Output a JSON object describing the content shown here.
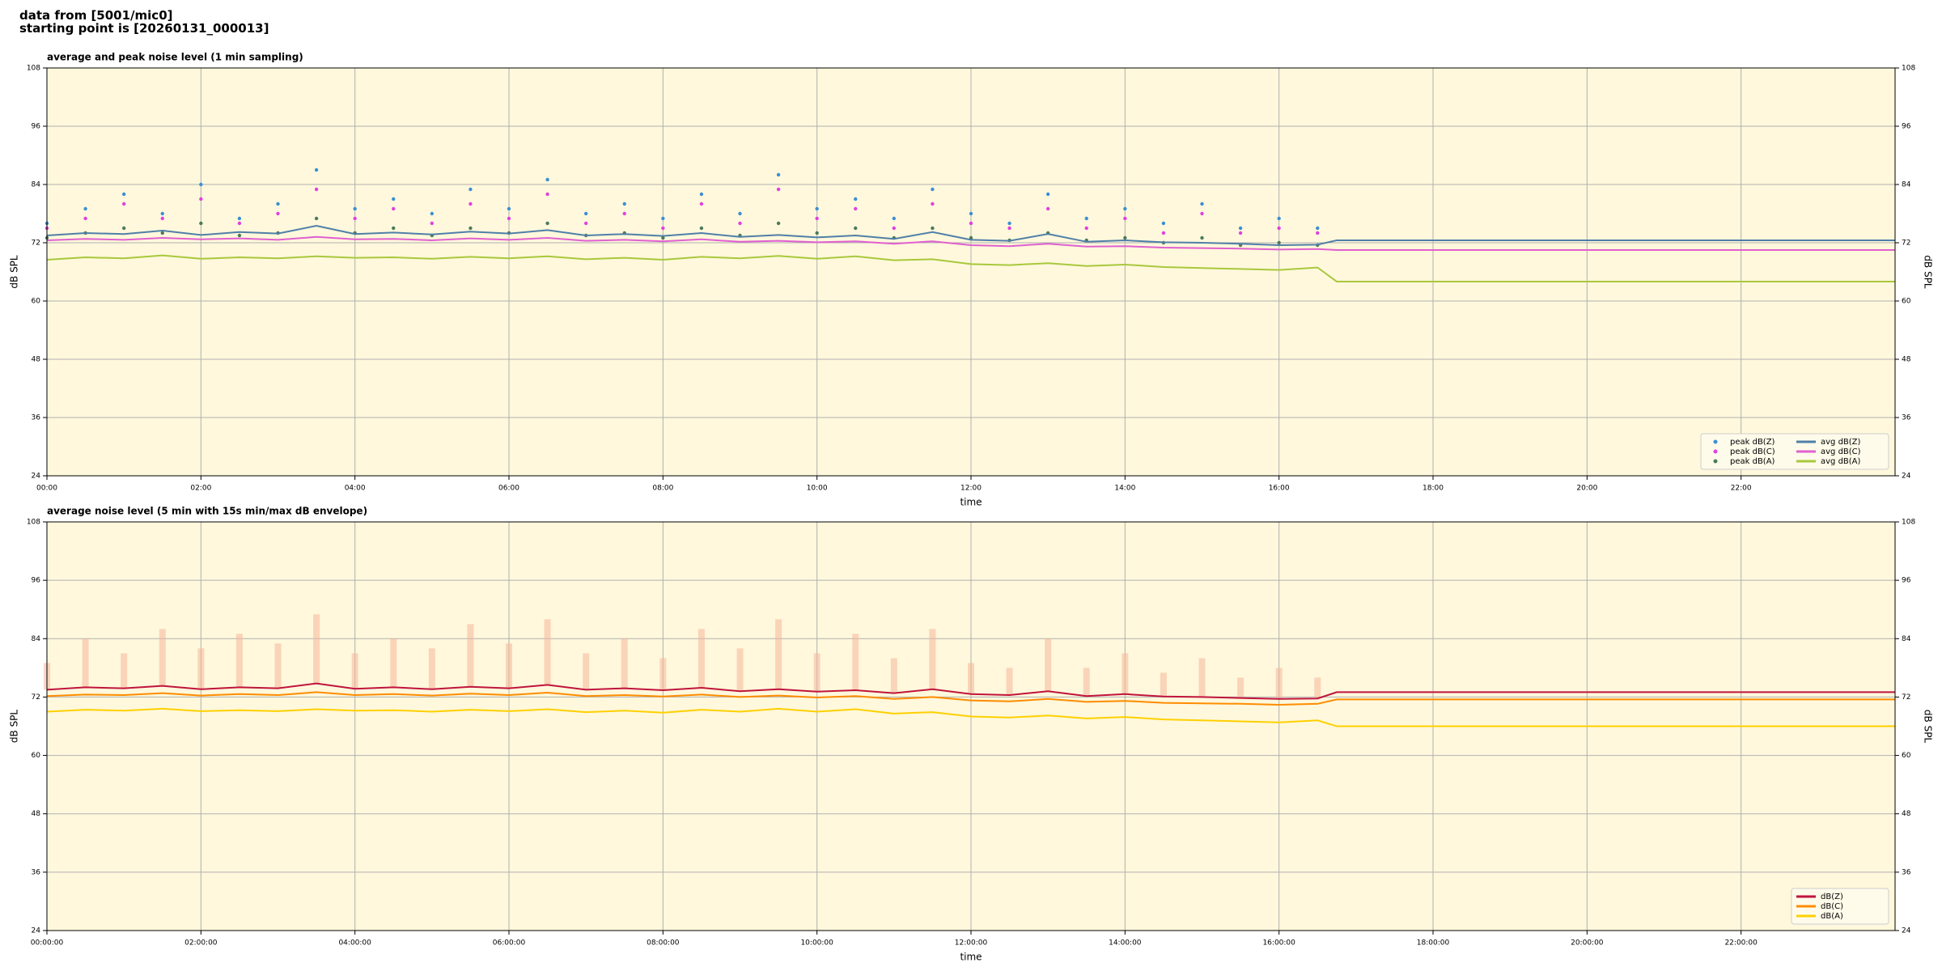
{
  "header": {
    "line1": "data from [5001/mic0]",
    "line2": "starting point is [20260131_000013]"
  },
  "chart_data": [
    {
      "type": "line",
      "title": "average and peak noise level (1 min sampling)",
      "x_label": "time",
      "y_label": "dB SPL",
      "xlim": [
        0,
        24
      ],
      "ylim": [
        24,
        108
      ],
      "xticks": [
        {
          "value": 0,
          "label": "00:00"
        },
        {
          "value": 2,
          "label": "02:00"
        },
        {
          "value": 4,
          "label": "04:00"
        },
        {
          "value": 6,
          "label": "06:00"
        },
        {
          "value": 8,
          "label": "08:00"
        },
        {
          "value": 10,
          "label": "10:00"
        },
        {
          "value": 12,
          "label": "12:00"
        },
        {
          "value": 14,
          "label": "14:00"
        },
        {
          "value": 16,
          "label": "16:00"
        },
        {
          "value": 18,
          "label": "18:00"
        },
        {
          "value": 20,
          "label": "20:00"
        },
        {
          "value": 22,
          "label": "22:00"
        }
      ],
      "yticks": [
        24,
        36,
        48,
        60,
        72,
        84,
        96,
        108
      ],
      "grid": true,
      "legend": "lower right",
      "x": [
        0,
        0.5,
        1,
        1.5,
        2,
        2.5,
        3,
        3.5,
        4,
        4.5,
        5,
        5.5,
        6,
        6.5,
        7,
        7.5,
        8,
        8.5,
        9,
        9.5,
        10,
        10.5,
        11,
        11.5,
        12,
        12.5,
        13,
        13.5,
        14,
        14.5,
        15,
        15.5,
        16,
        16.5,
        16.75,
        24
      ],
      "series": [
        {
          "name": "peak dB(Z)",
          "kind": "scatter",
          "color": "#3b8fd4",
          "values": [
            76,
            79,
            82,
            78,
            84,
            77,
            80,
            87,
            79,
            81,
            78,
            83,
            79,
            85,
            78,
            80,
            77,
            82,
            78,
            86,
            79,
            81,
            77,
            83,
            78,
            76,
            82,
            77,
            79,
            76,
            80,
            75,
            77,
            75,
            null,
            null
          ]
        },
        {
          "name": "peak dB(C)",
          "kind": "scatter",
          "color": "#e040e0",
          "values": [
            75,
            77,
            80,
            77,
            81,
            76,
            78,
            83,
            77,
            79,
            76,
            80,
            77,
            82,
            76,
            78,
            75,
            80,
            76,
            83,
            77,
            79,
            75,
            80,
            76,
            75,
            79,
            75,
            77,
            74,
            78,
            74,
            75,
            74,
            null,
            null
          ]
        },
        {
          "name": "peak dB(A)",
          "kind": "scatter",
          "color": "#4a7a5a",
          "values": [
            73,
            74,
            75,
            74,
            76,
            73.5,
            74,
            77,
            74,
            75,
            73.5,
            75,
            74,
            76,
            73.5,
            74,
            73,
            75,
            73.5,
            76,
            74,
            75,
            73,
            75,
            73,
            72.5,
            74,
            72.5,
            73,
            72,
            73,
            71.5,
            72,
            71.5,
            null,
            null
          ]
        },
        {
          "name": "avg dB(Z)",
          "kind": "line",
          "color": "#4f7fa8",
          "values": [
            73.5,
            74,
            73.8,
            74.5,
            73.6,
            74.2,
            73.9,
            75.5,
            73.8,
            74.1,
            73.7,
            74.3,
            73.9,
            74.6,
            73.5,
            73.8,
            73.4,
            74,
            73.2,
            73.6,
            73.1,
            73.5,
            72.8,
            74.2,
            72.6,
            72.4,
            73.8,
            72.2,
            72.5,
            72.1,
            72,
            71.8,
            71.5,
            71.6,
            72.5,
            72.5
          ]
        },
        {
          "name": "avg dB(C)",
          "kind": "line",
          "color": "#e060d0",
          "values": [
            72.5,
            72.8,
            72.6,
            73,
            72.7,
            72.9,
            72.6,
            73.2,
            72.7,
            72.8,
            72.5,
            72.9,
            72.6,
            73,
            72.4,
            72.6,
            72.3,
            72.7,
            72.2,
            72.4,
            72.1,
            72.3,
            71.8,
            72.3,
            71.5,
            71.3,
            71.8,
            71.2,
            71.3,
            71,
            70.9,
            70.8,
            70.6,
            70.7,
            70.5,
            70.5
          ]
        },
        {
          "name": "avg dB(A)",
          "kind": "line",
          "color": "#a8c83c",
          "values": [
            68.5,
            69,
            68.8,
            69.4,
            68.7,
            69,
            68.8,
            69.2,
            68.9,
            69,
            68.7,
            69.1,
            68.8,
            69.2,
            68.6,
            68.9,
            68.5,
            69.1,
            68.8,
            69.3,
            68.7,
            69.2,
            68.4,
            68.6,
            67.6,
            67.4,
            67.8,
            67.2,
            67.5,
            67,
            66.8,
            66.6,
            66.4,
            66.9,
            64,
            64
          ]
        }
      ]
    },
    {
      "type": "line",
      "title": "average noise level (5 min with 15s min/max dB envelope)",
      "x_label": "time",
      "y_label": "dB SPL",
      "xlim": [
        0,
        24
      ],
      "ylim": [
        24,
        108
      ],
      "xticks": [
        {
          "value": 0,
          "label": "00:00:00"
        },
        {
          "value": 2,
          "label": "02:00:00"
        },
        {
          "value": 4,
          "label": "04:00:00"
        },
        {
          "value": 6,
          "label": "06:00:00"
        },
        {
          "value": 8,
          "label": "08:00:00"
        },
        {
          "value": 10,
          "label": "10:00:00"
        },
        {
          "value": 12,
          "label": "12:00:00"
        },
        {
          "value": 14,
          "label": "14:00:00"
        },
        {
          "value": 16,
          "label": "16:00:00"
        },
        {
          "value": 18,
          "label": "18:00:00"
        },
        {
          "value": 20,
          "label": "20:00:00"
        },
        {
          "value": 22,
          "label": "22:00:00"
        }
      ],
      "yticks": [
        24,
        36,
        48,
        60,
        72,
        84,
        96,
        108
      ],
      "grid": true,
      "legend": "lower right",
      "x": [
        0,
        0.5,
        1,
        1.5,
        2,
        2.5,
        3,
        3.5,
        4,
        4.5,
        5,
        5.5,
        6,
        6.5,
        7,
        7.5,
        8,
        8.5,
        9,
        9.5,
        10,
        10.5,
        11,
        11.5,
        12,
        12.5,
        13,
        13.5,
        14,
        14.5,
        15,
        15.5,
        16,
        16.5,
        16.75,
        24
      ],
      "envelope": {
        "color": "#f5b79a",
        "max": [
          79,
          84,
          81,
          86,
          82,
          85,
          83,
          89,
          81,
          84,
          82,
          87,
          83,
          88,
          81,
          84,
          80,
          86,
          82,
          88,
          81,
          85,
          80,
          86,
          79,
          78,
          84,
          78,
          81,
          77,
          80,
          76,
          78,
          76,
          null,
          null
        ]
      },
      "series": [
        {
          "name": "dB(Z)",
          "kind": "line",
          "color": "#c0143c",
          "values": [
            73.5,
            74,
            73.8,
            74.3,
            73.6,
            74,
            73.8,
            74.8,
            73.7,
            74,
            73.6,
            74.1,
            73.8,
            74.5,
            73.5,
            73.8,
            73.4,
            73.9,
            73.2,
            73.6,
            73.1,
            73.4,
            72.8,
            73.6,
            72.6,
            72.4,
            73.2,
            72.2,
            72.6,
            72.1,
            72,
            71.8,
            71.6,
            71.7,
            73,
            73
          ]
        },
        {
          "name": "dB(C)",
          "kind": "line",
          "color": "#ff8c00",
          "values": [
            72.2,
            72.5,
            72.4,
            72.8,
            72.3,
            72.6,
            72.4,
            73,
            72.4,
            72.6,
            72.3,
            72.7,
            72.4,
            72.9,
            72.2,
            72.4,
            72.1,
            72.5,
            72,
            72.3,
            71.9,
            72.2,
            71.6,
            72,
            71.3,
            71.1,
            71.6,
            71,
            71.2,
            70.8,
            70.7,
            70.6,
            70.4,
            70.6,
            71.5,
            71.5
          ]
        },
        {
          "name": "dB(A)",
          "kind": "line",
          "color": "#ffd000",
          "values": [
            69,
            69.4,
            69.2,
            69.6,
            69.1,
            69.3,
            69.1,
            69.5,
            69.2,
            69.3,
            69,
            69.4,
            69.1,
            69.5,
            68.9,
            69.2,
            68.8,
            69.4,
            69,
            69.6,
            69,
            69.5,
            68.6,
            68.9,
            68,
            67.8,
            68.2,
            67.6,
            67.9,
            67.4,
            67.2,
            67,
            66.8,
            67.2,
            66,
            66
          ]
        }
      ]
    }
  ]
}
